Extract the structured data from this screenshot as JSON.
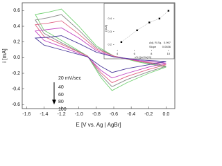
{
  "chart_data": [
    {
      "type": "line",
      "x_label": "E [V vs. Ag | AgBr]",
      "y_label": "i [mA]",
      "x": [
        0,
        -0.3,
        -0.6,
        -0.8,
        -1.0,
        -1.2,
        -1.35,
        -1.5,
        -1.4,
        -1.2,
        -0.9,
        -0.75,
        -0.62,
        -0.45,
        -0.2,
        0
      ],
      "series": [
        {
          "name": "20 mV/sec",
          "color": "#4b3a9a",
          "values": [
            -0.05,
            -0.03,
            0.01,
            0.07,
            0.18,
            0.28,
            0.26,
            0.25,
            0.16,
            0.1,
            0.01,
            -0.11,
            -0.19,
            -0.14,
            -0.09,
            -0.05
          ]
        },
        {
          "name": "40",
          "color": "#c040c0",
          "values": [
            -0.07,
            -0.04,
            0.01,
            0.09,
            0.25,
            0.38,
            0.36,
            0.34,
            0.22,
            0.14,
            0.01,
            -0.16,
            -0.26,
            -0.2,
            -0.12,
            -0.07
          ]
        },
        {
          "name": "60",
          "color": "#e06080",
          "values": [
            -0.09,
            -0.05,
            0.02,
            0.11,
            0.3,
            0.47,
            0.44,
            0.42,
            0.27,
            0.17,
            0.02,
            -0.19,
            -0.32,
            -0.24,
            -0.15,
            -0.09
          ]
        },
        {
          "name": "80",
          "color": "#888888",
          "values": [
            -0.11,
            -0.05,
            0.02,
            0.13,
            0.35,
            0.55,
            0.51,
            0.48,
            0.31,
            0.19,
            0.02,
            -0.22,
            -0.37,
            -0.28,
            -0.18,
            -0.11
          ]
        },
        {
          "name": "100",
          "color": "#70d070",
          "values": [
            -0.12,
            -0.06,
            0.02,
            0.15,
            0.4,
            0.62,
            0.58,
            0.55,
            0.35,
            0.22,
            0.02,
            -0.25,
            -0.42,
            -0.32,
            -0.2,
            -0.12
          ]
        }
      ],
      "xlim": [
        -1.65,
        0.1
      ],
      "xticks": [
        -1.6,
        -1.4,
        -1.2,
        {
          "value": -1.0,
          "label": "-1.0"
        },
        -0.8,
        -0.6,
        -0.4,
        -0.2,
        {
          "value": 0,
          "label": "0.0"
        }
      ],
      "ylim": [
        -0.65,
        0.7
      ],
      "yticks": [
        -0.6,
        -0.4,
        -0.2,
        {
          "value": 0,
          "label": "0.0"
        },
        0.2,
        0.4,
        0.6
      ]
    },
    {
      "type": "scatter",
      "x_label": "v½ [(mV/s)½]",
      "y_label": "i [mA]",
      "x": [
        4.47,
        6.32,
        7.75,
        8.94,
        10
      ],
      "values": [
        0.22,
        0.31,
        0.37,
        0.4,
        0.46
      ],
      "color": "#000000",
      "xlim": [
        3.5,
        10.5
      ],
      "xticks": [
        4,
        6,
        8,
        10
      ],
      "ylim": [
        0.15,
        0.5
      ],
      "yticks": [
        0.2,
        0.3,
        0.4
      ],
      "annotations": [
        "Adj. R-Sq.",
        "0.997",
        "Slope",
        "0.0636"
      ]
    }
  ]
}
